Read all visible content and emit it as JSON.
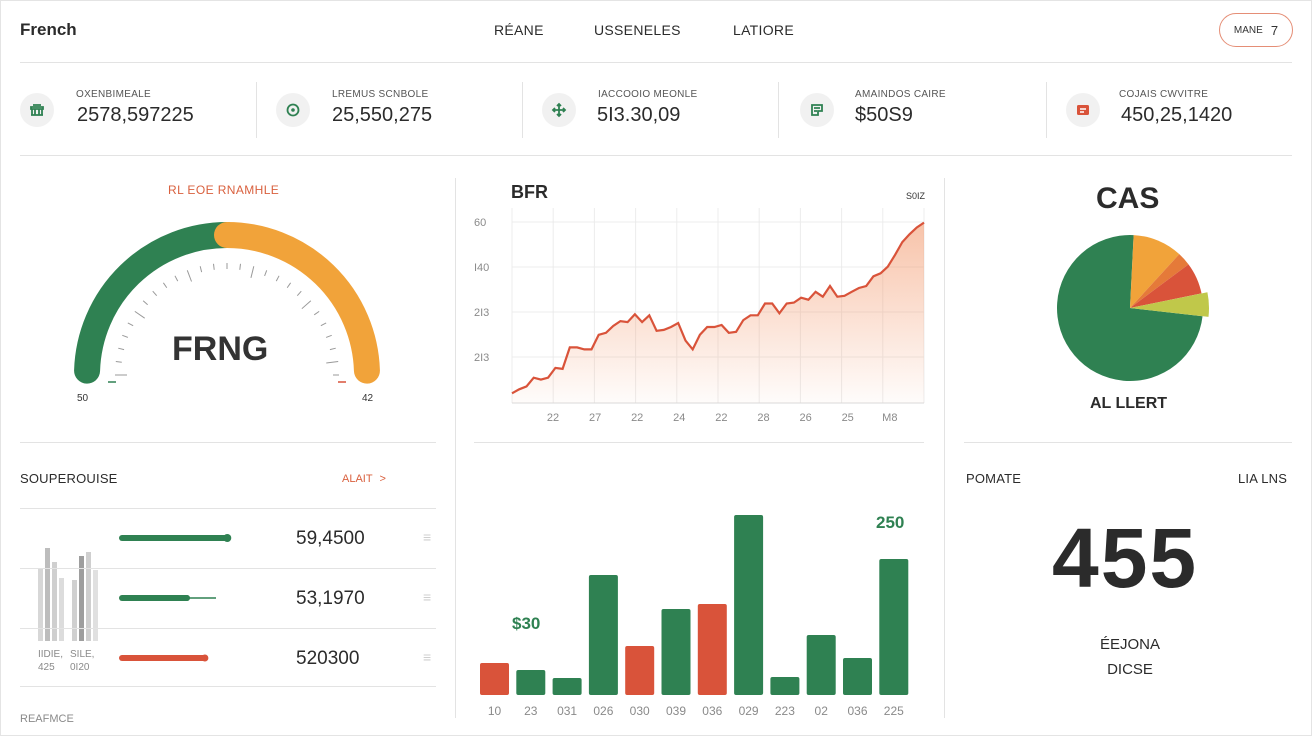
{
  "header": {
    "brand": "French",
    "nav": [
      "RÉANE",
      "USSENELES",
      "LATIORE"
    ],
    "pill_label": "MANE",
    "pill_count": "7"
  },
  "stats": [
    {
      "icon": "building-icon",
      "label": "OXENBIMEALE",
      "value": "2578,597225"
    },
    {
      "icon": "target-icon",
      "label": "LREMUS SCNBOLE",
      "value": "25,550,275"
    },
    {
      "icon": "move-icon",
      "label": "IACCOOIO MEONLE",
      "value": "5I3.30,09"
    },
    {
      "icon": "document-icon",
      "label": "AMAINDOS CAIRE",
      "value": "$50S9"
    },
    {
      "icon": "report-icon",
      "label": "COJAIS CWVITRE",
      "value": "450,25,1420"
    }
  ],
  "gauge": {
    "title": "RL EOE RNAMHLE",
    "center_text": "FRNG",
    "min_label": "50",
    "max_label": "42",
    "value_fraction": 0.5,
    "colors": {
      "low": "#2f8152",
      "high": "#f1a33a"
    }
  },
  "line_chart_title": "BFR",
  "bar_annotations": {
    "left": "$30",
    "right": "250"
  },
  "pie_title": "CAS",
  "pie_caption": "AL LLERT",
  "resource_list": {
    "title": "SOUPEROUISE",
    "link": "ALAIT",
    "rows": [
      {
        "value": "59,4500",
        "progress": 0.94,
        "color": "#2f8152"
      },
      {
        "value": "53,1970",
        "progress": 0.58,
        "color": "#2f8152"
      },
      {
        "value": "520300",
        "progress": 0.74,
        "color": "#d9533a"
      }
    ],
    "mini_labels": [
      "IIDIE, 425",
      "SILE, 0I20"
    ],
    "footer": "REAFMCE"
  },
  "kpi": {
    "left_label": "POMATE",
    "right_label": "LIA LNS",
    "value": "455",
    "sub_line1": "ÉEJONA",
    "sub_line2": "DICSE"
  },
  "chart_data": [
    {
      "type": "area",
      "title": "BFR",
      "x_ticks": [
        "22",
        "27",
        "22",
        "24",
        "22",
        "28",
        "26",
        "25",
        "M8"
      ],
      "y_ticks": [
        "60",
        "I40",
        "2I3",
        "2I3"
      ],
      "end_label": "S0IZ",
      "series": [
        {
          "name": "BFR",
          "values": [
            10,
            14,
            17,
            26,
            24,
            26,
            36,
            35,
            57,
            57,
            55,
            55,
            70,
            72,
            79,
            84,
            83,
            91,
            83,
            90,
            74,
            75,
            78,
            82,
            64,
            55,
            70,
            78,
            78,
            80,
            72,
            73,
            85,
            90,
            90,
            102,
            102,
            92,
            102,
            103,
            108,
            106,
            114,
            109,
            120,
            109,
            110,
            114,
            118,
            120,
            130,
            133,
            140,
            152,
            165,
            173,
            180,
            185
          ]
        }
      ]
    },
    {
      "type": "bar",
      "categories": [
        "10",
        "23",
        "031",
        "026",
        "030",
        "039",
        "036",
        "029",
        "223",
        "02",
        "036",
        "225"
      ],
      "values": [
        32,
        25,
        17,
        120,
        49,
        86,
        91,
        180,
        18,
        60,
        37,
        136
      ],
      "colors": [
        "#d9533a",
        "#2f8152",
        "#2f8152",
        "#2f8152",
        "#d9533a",
        "#2f8152",
        "#d9533a",
        "#2f8152",
        "#2f8152",
        "#2f8152",
        "#2f8152",
        "#2f8152"
      ],
      "annotations": [
        "$30",
        "250"
      ]
    },
    {
      "type": "pie",
      "title": "CAS",
      "caption": "AL LLERT",
      "slices": [
        {
          "value": 74,
          "color": "#2f8152"
        },
        {
          "value": 11,
          "color": "#f1a33a"
        },
        {
          "value": 3,
          "color": "#e57a39"
        },
        {
          "value": 7,
          "color": "#d9533a"
        },
        {
          "value": 5,
          "color": "#c0c84a"
        }
      ]
    }
  ]
}
